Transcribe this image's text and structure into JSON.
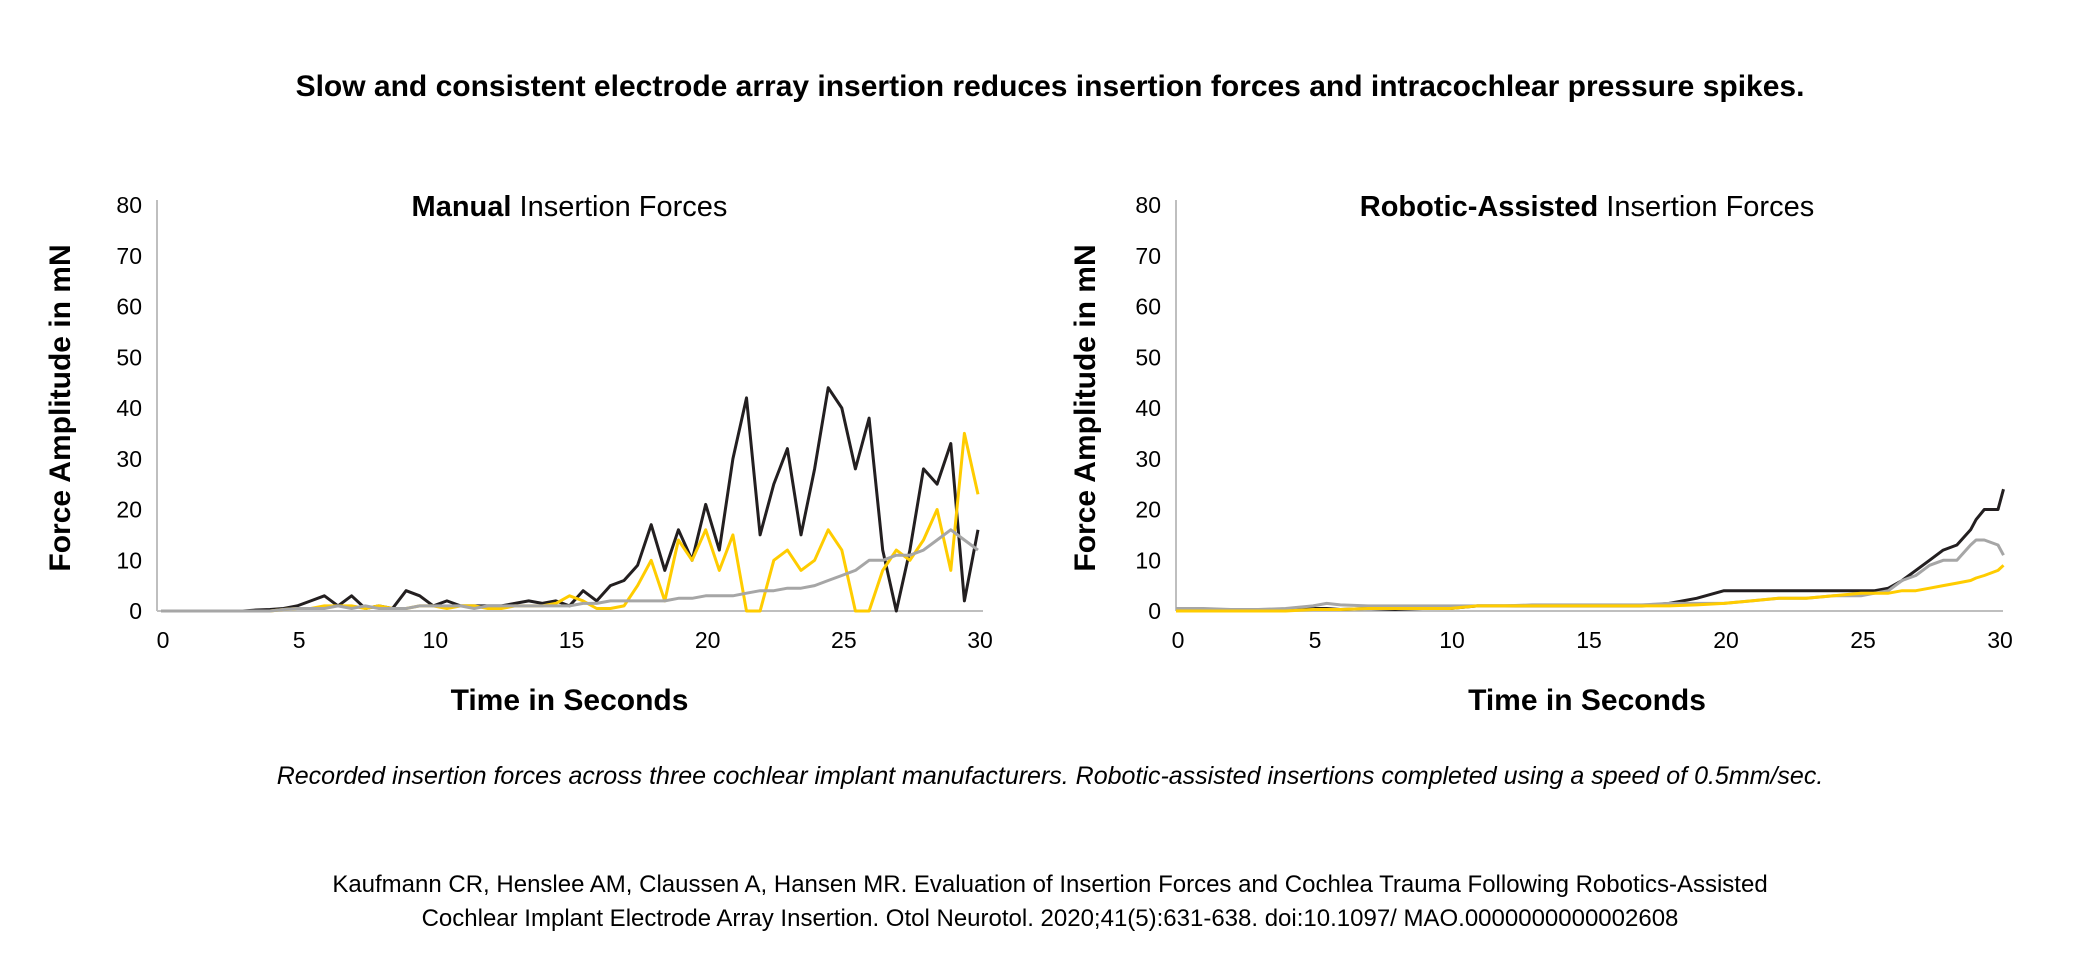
{
  "headline": "Slow and consistent electrode array insertion reduces insertion forces and intracochlear pressure spikes.",
  "caption": "Recorded insertion forces across three cochlear implant manufacturers. Robotic-assisted insertions completed using a speed of 0.5mm/sec.",
  "citation": {
    "line1": "Kaufmann CR, Henslee AM, Claussen A, Hansen MR. Evaluation of Insertion Forces and Cochlea Trauma Following Robotics-Assisted",
    "line2": "Cochlear Implant Electrode Array Insertion. Otol Neurotol. 2020;41(5):631-638. doi:10.1097/ MAO.0000000000002608"
  },
  "colors": {
    "black": "#231f20",
    "yellow": "#ffcc00",
    "gray": "#a6a6a6",
    "axis": "#bfbfbf"
  },
  "chart_data": [
    {
      "type": "line",
      "title_bold": "Manual",
      "title_rest": " Insertion Forces",
      "xlabel": "Time in Seconds",
      "ylabel": "Force Amplitude in mN",
      "xlim": [
        0,
        30
      ],
      "ylim": [
        0,
        80
      ],
      "xticks": [
        0,
        5,
        10,
        15,
        20,
        25,
        30
      ],
      "yticks": [
        0,
        10,
        20,
        30,
        40,
        50,
        60,
        70,
        80
      ],
      "grid": false,
      "x": [
        0,
        0.5,
        1,
        1.5,
        2,
        2.5,
        3,
        3.5,
        4,
        4.5,
        5,
        5.5,
        6,
        6.5,
        7,
        7.5,
        8,
        8.5,
        9,
        9.5,
        10,
        10.5,
        11,
        11.5,
        12,
        12.5,
        13,
        13.5,
        14,
        14.5,
        15,
        15.5,
        16,
        16.5,
        17,
        17.5,
        18,
        18.5,
        19,
        19.5,
        20,
        20.5,
        21,
        21.5,
        22,
        22.5,
        23,
        23.5,
        24,
        24.5,
        25,
        25.5,
        26,
        26.5,
        27,
        27.5,
        28,
        28.5,
        29,
        29.5,
        30
      ],
      "series": [
        {
          "color": "black",
          "values": [
            0,
            0,
            0,
            0,
            0,
            0,
            0,
            0.2,
            0.3,
            0.5,
            1,
            2,
            3,
            1,
            3,
            0.5,
            1,
            0.5,
            4,
            3,
            1,
            2,
            1,
            1,
            1,
            1,
            1.5,
            2,
            1.5,
            2,
            1,
            4,
            2,
            5,
            6,
            9,
            17,
            8,
            16,
            10,
            21,
            12,
            30,
            42,
            15,
            25,
            32,
            15,
            28,
            44,
            40,
            28,
            38,
            12,
            0,
            12,
            28,
            25,
            33,
            2,
            16
          ]
        },
        {
          "color": "yellow",
          "values": [
            0,
            0,
            0,
            0,
            0,
            0,
            0,
            0,
            0,
            0.3,
            0.5,
            0.5,
            1,
            1,
            1,
            0.5,
            1,
            0.5,
            0.5,
            1,
            1,
            0.5,
            1,
            1,
            0.5,
            0.5,
            1,
            1,
            1,
            1.5,
            3,
            2,
            0.5,
            0.5,
            1,
            5,
            10,
            2,
            14,
            10,
            16,
            8,
            15,
            0,
            0,
            10,
            12,
            8,
            10,
            16,
            12,
            0,
            0,
            8,
            12,
            10,
            14,
            20,
            8,
            35,
            23
          ]
        },
        {
          "color": "gray",
          "values": [
            0,
            0,
            0,
            0,
            0,
            0,
            0,
            0,
            0,
            0.3,
            0.5,
            0.5,
            0.5,
            1,
            0.5,
            1,
            0.5,
            0.5,
            0.5,
            1,
            1,
            1,
            1,
            0.5,
            1,
            1,
            1,
            1,
            1,
            1,
            1,
            1.5,
            1.5,
            2,
            2,
            2,
            2,
            2,
            2.5,
            2.5,
            3,
            3,
            3,
            3.5,
            4,
            4,
            4.5,
            4.5,
            5,
            6,
            7,
            8,
            10,
            10,
            11,
            11,
            12,
            14,
            16,
            14,
            12
          ]
        }
      ]
    },
    {
      "type": "line",
      "title_bold": "Robotic-Assisted",
      "title_rest": " Insertion Forces",
      "xlabel": "Time in Seconds",
      "ylabel": "Force Amplitude in mN",
      "xlim": [
        0,
        30
      ],
      "ylim": [
        0,
        80
      ],
      "xticks": [
        0,
        5,
        10,
        15,
        20,
        25,
        30
      ],
      "yticks": [
        0,
        10,
        20,
        30,
        40,
        50,
        60,
        70,
        80
      ],
      "grid": false,
      "x": [
        0,
        1,
        2,
        3,
        4,
        5,
        5.5,
        6,
        7,
        8,
        9,
        10,
        11,
        12,
        13,
        14,
        15,
        16,
        17,
        18,
        19,
        20,
        21,
        22,
        23,
        24,
        25,
        25.5,
        26,
        26.5,
        27,
        27.5,
        28,
        28.5,
        29,
        29.2,
        29.5,
        30,
        30.2
      ],
      "series": [
        {
          "color": "black",
          "values": [
            0,
            0,
            0,
            0,
            0.3,
            0.5,
            0.5,
            0.3,
            0.5,
            0.3,
            0.5,
            0.5,
            1,
            1,
            1,
            1,
            1,
            1,
            1,
            1.5,
            2.5,
            4,
            4,
            4,
            4,
            4,
            4,
            4,
            4.5,
            6,
            8,
            10,
            12,
            13,
            16,
            18,
            20,
            20,
            24
          ]
        },
        {
          "color": "gray",
          "values": [
            0.5,
            0.5,
            0.3,
            0.3,
            0.5,
            1,
            1.5,
            1.2,
            1,
            1,
            1,
            1,
            1,
            1,
            1.2,
            1.2,
            1.2,
            1.2,
            1.2,
            1.5,
            1.5,
            1.5,
            2,
            2.5,
            2.5,
            3,
            3,
            3.5,
            4,
            6,
            7,
            9,
            10,
            10,
            13,
            14,
            14,
            13,
            11
          ]
        },
        {
          "color": "yellow",
          "values": [
            0,
            0,
            0,
            0,
            0,
            0.3,
            0.3,
            0.3,
            0.5,
            0.5,
            0.5,
            0.5,
            1,
            1,
            1,
            1,
            1,
            1,
            1,
            1,
            1.2,
            1.5,
            2,
            2.5,
            2.5,
            3,
            3.5,
            3.5,
            3.5,
            4,
            4,
            4.5,
            5,
            5.5,
            6,
            6.5,
            7,
            8,
            9
          ]
        }
      ]
    }
  ]
}
